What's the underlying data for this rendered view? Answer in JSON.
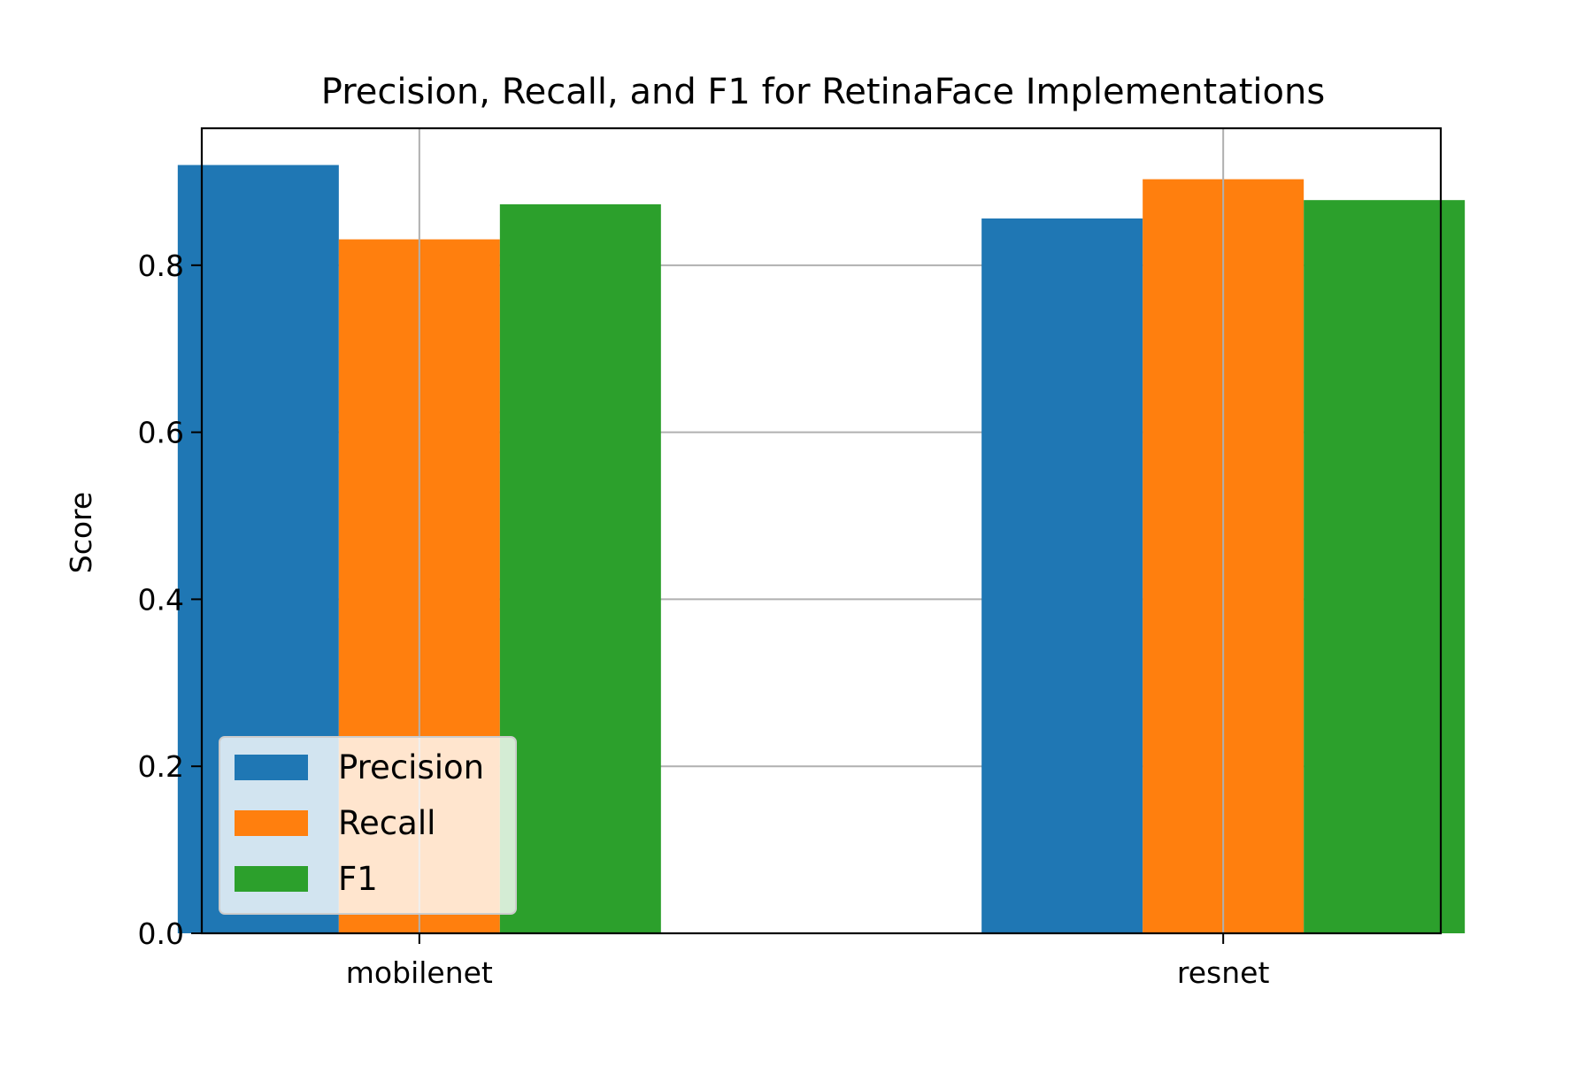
{
  "chart_data": {
    "type": "bar",
    "title": "Precision, Recall, and F1 for RetinaFace Implementations",
    "xlabel": "",
    "ylabel": "Score",
    "categories": [
      "mobilenet",
      "resnet"
    ],
    "series": [
      {
        "name": "Precision",
        "values": [
          0.92,
          0.856
        ],
        "color": "#1f77b4"
      },
      {
        "name": "Recall",
        "values": [
          0.831,
          0.903
        ],
        "color": "#ff7f0e"
      },
      {
        "name": "F1",
        "values": [
          0.873,
          0.878
        ],
        "color": "#2ca02c"
      }
    ],
    "ylim": [
      0,
      0.964
    ],
    "yticks": [
      "0.0",
      "0.2",
      "0.4",
      "0.6",
      "0.8"
    ],
    "grid": true,
    "legend_position": "lower-left"
  }
}
